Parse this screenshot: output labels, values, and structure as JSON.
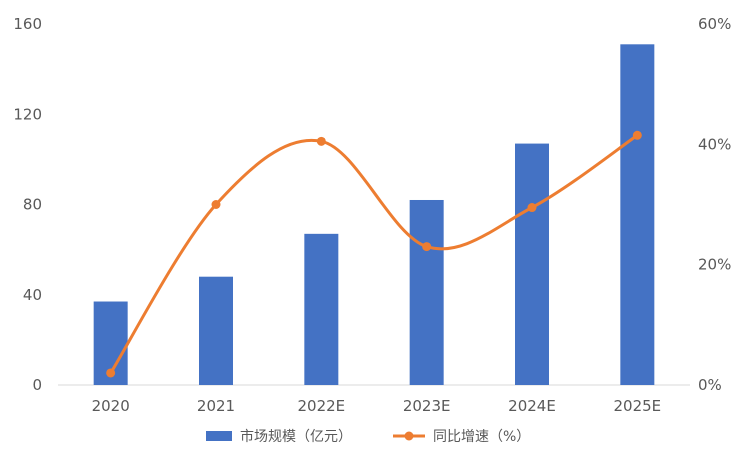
{
  "chart_data": {
    "type": "bar+line",
    "categories": [
      "2020",
      "2021",
      "2022E",
      "2023E",
      "2024E",
      "2025E"
    ],
    "series": [
      {
        "name": "市场规模（亿元）",
        "type": "bar",
        "axis": "left",
        "color": "#4472C4",
        "values": [
          37,
          48,
          67,
          82,
          107,
          151
        ]
      },
      {
        "name": "同比增速（%）",
        "type": "line",
        "axis": "right",
        "smooth": true,
        "color": "#ED7D31",
        "values": [
          2,
          30,
          40.5,
          23,
          29.5,
          41.5
        ]
      }
    ],
    "y_left": {
      "range": [
        0,
        160
      ],
      "ticks": [
        "0",
        "40",
        "80",
        "120",
        "160"
      ]
    },
    "y_right": {
      "range": [
        0,
        60
      ],
      "ticks": [
        "0%",
        "20%",
        "40%",
        "60%"
      ]
    },
    "grid": false,
    "legend": "bottom-center"
  }
}
